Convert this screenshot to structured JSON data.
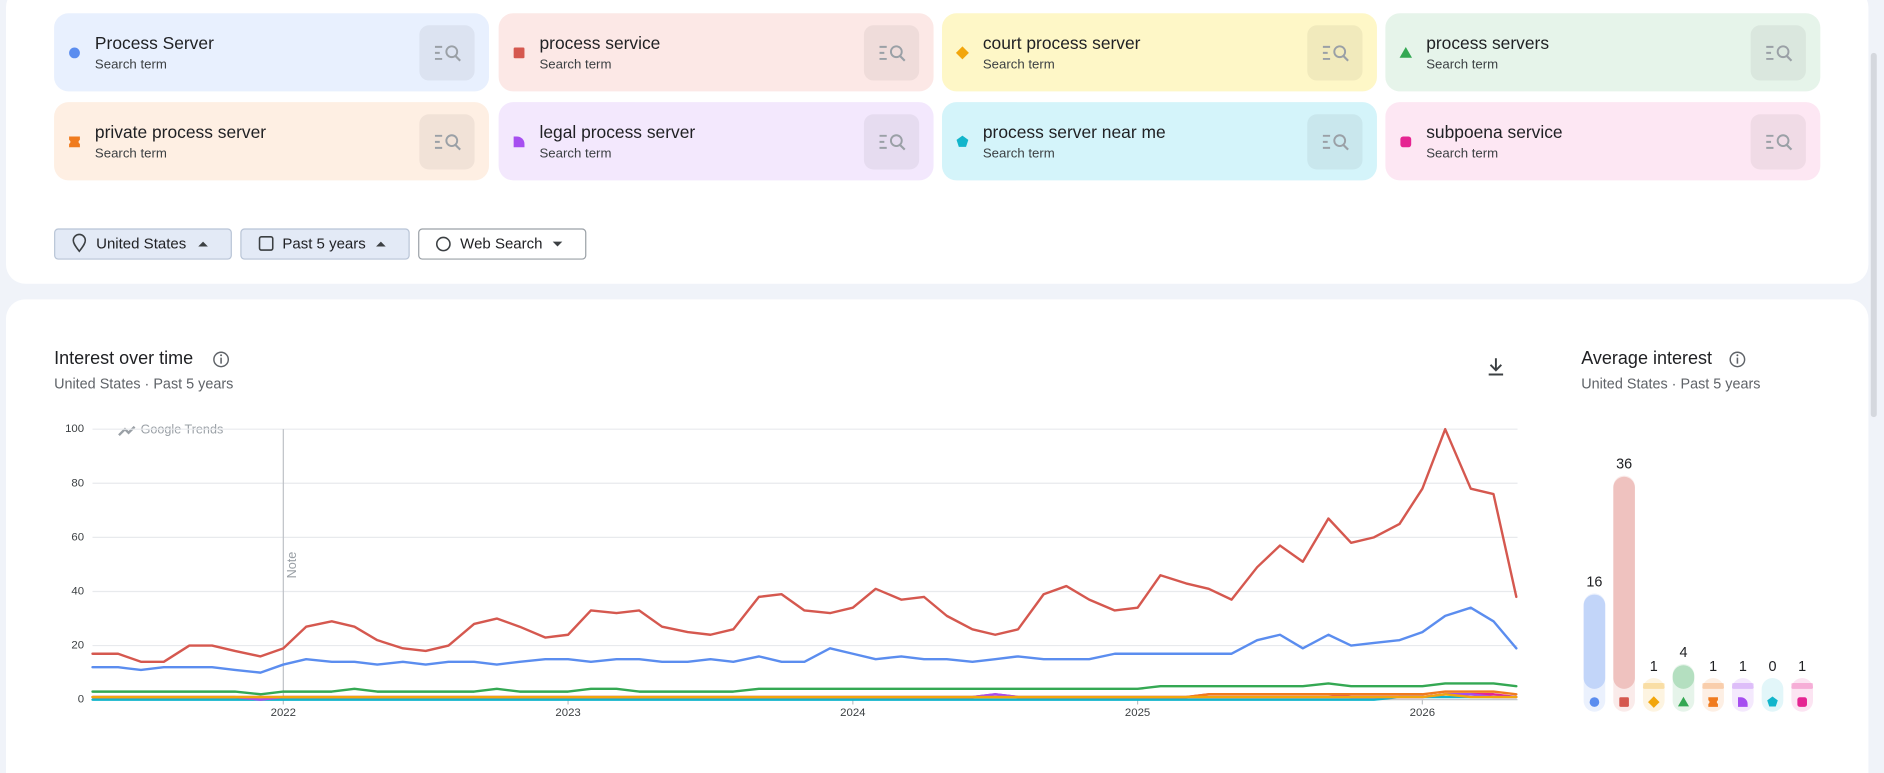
{
  "term_cards": [
    "Search term",
    "Search term",
    "Search term",
    "Search term",
    "Search term",
    "Search term",
    "Search term",
    "Search term"
  ],
  "filters": [
    "United States",
    "Past 5 years",
    "Web Search"
  ],
  "chart_data": [
    {
      "type": "line",
      "title": "Interest over time",
      "subtitle": "United States · Past 5 years",
      "watermark": "Google Trends",
      "annotation": {
        "text": "Note",
        "x": 2022
      },
      "x": [
        2021.33,
        2021.42,
        2021.5,
        2021.58,
        2021.67,
        2021.75,
        2021.83,
        2021.92,
        2022.0,
        2022.08,
        2022.17,
        2022.25,
        2022.33,
        2022.42,
        2022.5,
        2022.58,
        2022.67,
        2022.75,
        2022.83,
        2022.92,
        2023.0,
        2023.08,
        2023.17,
        2023.25,
        2023.33,
        2023.42,
        2023.5,
        2023.58,
        2023.67,
        2023.75,
        2023.83,
        2023.92,
        2024.0,
        2024.08,
        2024.17,
        2024.25,
        2024.33,
        2024.42,
        2024.5,
        2024.58,
        2024.67,
        2024.75,
        2024.83,
        2024.92,
        2025.0,
        2025.08,
        2025.17,
        2025.25,
        2025.33,
        2025.42,
        2025.5,
        2025.58,
        2025.67,
        2025.75,
        2025.83,
        2025.92,
        2026.0,
        2026.08,
        2026.17,
        2026.25,
        2026.33
      ],
      "xlim": [
        2021.33,
        2026.33
      ],
      "xticks": [
        2022,
        2023,
        2024,
        2025,
        2026
      ],
      "ylim": [
        0,
        100
      ],
      "yticks": [
        0,
        20,
        40,
        60,
        80,
        100
      ],
      "grid": true,
      "series": [
        {
          "name": "Process Server",
          "color": "#5b8def",
          "values": [
            12,
            12,
            11,
            12,
            12,
            12,
            11,
            10,
            13,
            15,
            14,
            14,
            13,
            14,
            13,
            14,
            14,
            13,
            14,
            15,
            15,
            14,
            15,
            15,
            14,
            14,
            15,
            14,
            16,
            14,
            14,
            19,
            17,
            15,
            16,
            15,
            15,
            14,
            15,
            16,
            15,
            15,
            15,
            17,
            17,
            17,
            17,
            17,
            17,
            22,
            24,
            19,
            24,
            20,
            21,
            22,
            25,
            31,
            34,
            29,
            19
          ]
        },
        {
          "name": "process service",
          "color": "#d5584f",
          "values": [
            17,
            17,
            14,
            14,
            20,
            20,
            18,
            16,
            19,
            27,
            29,
            27,
            22,
            19,
            18,
            20,
            28,
            30,
            27,
            23,
            24,
            33,
            32,
            33,
            27,
            25,
            24,
            26,
            38,
            39,
            33,
            32,
            34,
            41,
            37,
            38,
            31,
            26,
            24,
            26,
            39,
            42,
            37,
            33,
            34,
            46,
            43,
            41,
            37,
            49,
            57,
            51,
            67,
            58,
            60,
            65,
            78,
            100,
            78,
            76,
            38
          ]
        },
        {
          "name": "court process server",
          "color": "#f2a60c",
          "values": [
            1,
            1,
            1,
            1,
            1,
            1,
            1,
            1,
            1,
            1,
            1,
            1,
            1,
            1,
            1,
            1,
            1,
            1,
            1,
            1,
            1,
            1,
            1,
            1,
            1,
            1,
            1,
            1,
            1,
            1,
            1,
            1,
            1,
            1,
            1,
            1,
            1,
            1,
            1,
            1,
            1,
            1,
            1,
            1,
            1,
            1,
            1,
            1,
            1,
            1,
            1,
            1,
            1,
            1,
            1,
            1,
            1,
            2,
            1,
            1,
            1
          ]
        },
        {
          "name": "process servers",
          "color": "#34a853",
          "values": [
            3,
            3,
            3,
            3,
            3,
            3,
            3,
            2,
            3,
            3,
            3,
            4,
            3,
            3,
            3,
            3,
            3,
            4,
            3,
            3,
            3,
            4,
            4,
            3,
            3,
            3,
            3,
            3,
            4,
            4,
            4,
            4,
            4,
            4,
            4,
            4,
            4,
            4,
            4,
            4,
            4,
            4,
            4,
            4,
            4,
            5,
            5,
            5,
            5,
            5,
            5,
            5,
            6,
            5,
            5,
            5,
            5,
            6,
            6,
            6,
            5
          ]
        },
        {
          "name": "private process server",
          "color": "#f07b1e",
          "values": [
            1,
            1,
            1,
            1,
            1,
            1,
            1,
            1,
            1,
            1,
            1,
            1,
            1,
            1,
            1,
            1,
            1,
            1,
            1,
            1,
            1,
            1,
            1,
            1,
            1,
            1,
            1,
            1,
            1,
            1,
            1,
            1,
            1,
            1,
            1,
            1,
            1,
            1,
            1,
            1,
            1,
            1,
            1,
            1,
            1,
            1,
            1,
            2,
            2,
            2,
            2,
            2,
            2,
            2,
            2,
            2,
            2,
            3,
            3,
            3,
            2
          ]
        },
        {
          "name": "legal process server",
          "color": "#a64ef0",
          "values": [
            1,
            1,
            1,
            1,
            1,
            1,
            1,
            0,
            1,
            1,
            1,
            1,
            1,
            1,
            1,
            1,
            1,
            1,
            1,
            1,
            1,
            1,
            1,
            1,
            1,
            1,
            1,
            1,
            1,
            1,
            1,
            1,
            1,
            1,
            1,
            1,
            1,
            1,
            2,
            1,
            1,
            1,
            1,
            1,
            1,
            1,
            1,
            1,
            1,
            1,
            1,
            1,
            1,
            1,
            1,
            1,
            1,
            2,
            2,
            1,
            1
          ]
        },
        {
          "name": "process server near me",
          "color": "#12b5cb",
          "values": [
            0,
            0,
            0,
            0,
            0,
            0,
            0,
            0,
            0,
            0,
            0,
            0,
            0,
            0,
            0,
            0,
            0,
            0,
            0,
            0,
            0,
            0,
            0,
            0,
            0,
            0,
            0,
            0,
            0,
            0,
            0,
            0,
            0,
            0,
            0,
            0,
            0,
            0,
            0,
            0,
            0,
            0,
            0,
            0,
            0,
            0,
            0,
            0,
            0,
            0,
            0,
            0,
            0,
            0,
            0,
            1,
            1,
            1,
            1,
            1,
            1
          ]
        },
        {
          "name": "subpoena service",
          "color": "#e52592",
          "values": [
            1,
            1,
            1,
            1,
            1,
            1,
            1,
            1,
            1,
            1,
            1,
            1,
            1,
            1,
            1,
            1,
            1,
            1,
            1,
            1,
            1,
            1,
            1,
            1,
            1,
            1,
            1,
            1,
            1,
            1,
            1,
            1,
            1,
            1,
            1,
            1,
            1,
            1,
            2,
            1,
            1,
            1,
            1,
            1,
            1,
            1,
            1,
            2,
            2,
            2,
            2,
            2,
            2,
            1,
            1,
            1,
            1,
            2,
            2,
            2,
            1
          ]
        }
      ]
    },
    {
      "type": "bar",
      "title": "Average interest",
      "subtitle": "United States · Past 5 years",
      "values": [
        16,
        36,
        1,
        4,
        1,
        1,
        0,
        1
      ],
      "colors": [
        "#5b8def",
        "#d5584f",
        "#f2a60c",
        "#34a853",
        "#f07b1e",
        "#a64ef0",
        "#12b5cb",
        "#e52592"
      ]
    }
  ]
}
